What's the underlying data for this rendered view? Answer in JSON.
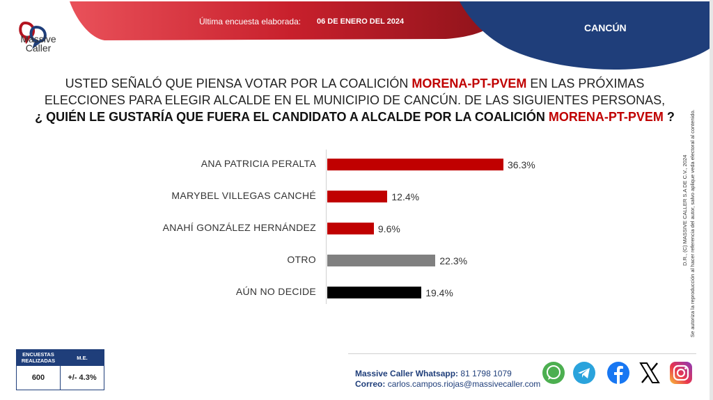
{
  "header": {
    "brand_line1": "Massive",
    "brand_line2": "Caller",
    "survey_label": "Última encuesta elaborada:",
    "survey_date": "06 DE ENERO DEL 2024",
    "city": "CANCÚN"
  },
  "question": {
    "line1_pre": "USTED SEÑALÓ QUE PIENSA VOTAR POR LA COALICIÓN ",
    "line1_highlight": "MORENA-PT-PVEM",
    "line1_post": " EN LAS PRÓXIMAS",
    "line2": "ELECCIONES PARA ELEGIR ALCALDE EN EL MUNICIPIO DE CANCÚN. DE LAS SIGUIENTES PERSONAS,",
    "line3_pre": "¿ QUIÉN LE GUSTARÍA QUE FUERA EL CANDIDATO A ALCALDE POR LA COALICIÓN ",
    "line3_highlight": "MORENA-PT-PVEM",
    "line3_post": " ?"
  },
  "copyright": {
    "line1": "D.R., (C) MASSIVE CALLER S.A DE C.V., 2024",
    "line2": "Se autoriza la reproducción al hacer referencia del autor, salvo aplique veda electoral al contenido."
  },
  "chart_data": {
    "type": "bar",
    "orientation": "horizontal",
    "categories": [
      "ANA PATRICIA PERALTA",
      "MARYBEL VILLEGAS CANCHÉ",
      "ANAHÍ GONZÁLEZ HERNÁNDEZ",
      "OTRO",
      "AÚN NO DECIDE"
    ],
    "values": [
      36.3,
      12.4,
      9.6,
      22.3,
      19.4
    ],
    "value_labels": [
      "36.3%",
      "12.4%",
      "9.6%",
      "22.3%",
      "19.4%"
    ],
    "colors": [
      "#c00000",
      "#c00000",
      "#c00000",
      "#808080",
      "#000000"
    ],
    "xlim": [
      0,
      40
    ],
    "title": "",
    "xlabel": "",
    "ylabel": "",
    "grid": false
  },
  "stats": {
    "header_encuestas": "ENCUESTAS REALIZADAS",
    "header_me": "M.E.",
    "encuestas": "600",
    "me": "+/- 4.3%"
  },
  "contact": {
    "whatsapp_label": "Massive Caller Whatsapp:",
    "whatsapp_number": "81 1798 1079",
    "email_label": "Correo:",
    "email": "carlos.campos.riojas@massivecaller.com"
  },
  "social": [
    "whatsapp-icon",
    "telegram-icon",
    "facebook-icon",
    "x-icon",
    "instagram-icon"
  ]
}
